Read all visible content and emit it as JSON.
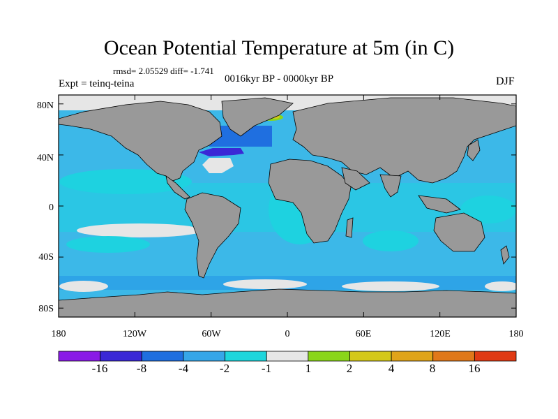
{
  "title": "Ocean Potential Temperature at 5m (in C)",
  "stats": "rmsd= 2.05529 diff= -1.741",
  "period": "0016kyr BP - 0000kyr BP",
  "experiment": "Expt = teinq-teina",
  "season": "DJF",
  "colors": {
    "land": "#999999",
    "ocean_base": "#3cb8e8",
    "sea_ice": "#e6e6e6"
  },
  "map": {
    "lon_ticks": [
      "180",
      "120W",
      "60W",
      "0",
      "60E",
      "120E",
      "180"
    ],
    "lat_ticks": [
      "80N",
      "40N",
      "0",
      "40S",
      "80S"
    ]
  },
  "colorbar": {
    "colors": [
      "#8a1be6",
      "#3a28d6",
      "#1f6fe0",
      "#36a6e8",
      "#1dd6dc",
      "#e6e6e6",
      "#8ad61a",
      "#d4c81a",
      "#e0a41a",
      "#e0781a",
      "#e03a14"
    ],
    "labels": [
      "-16",
      "-8",
      "-4",
      "-2",
      "-1",
      "1",
      "2",
      "4",
      "8",
      "16"
    ]
  }
}
